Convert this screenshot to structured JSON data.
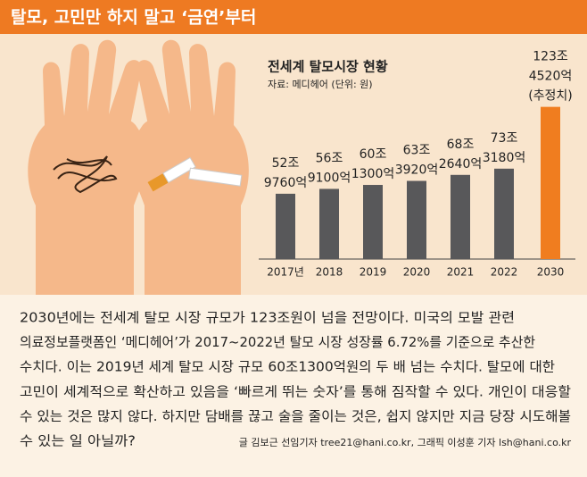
{
  "header": {
    "title": "탈모, 고민만 하지 말고 ‘금연’부터"
  },
  "chart_data": {
    "type": "bar",
    "title": "전세계 탈모시장 현황",
    "subtitle": "자료: 메디헤어 (단위: 원)",
    "categories": [
      "2017년",
      "2018",
      "2019",
      "2020",
      "2021",
      "2022",
      "2030"
    ],
    "values": [
      52.976,
      56.91,
      60.13,
      63.392,
      68.264,
      73.318,
      123.452
    ],
    "value_labels": [
      [
        "52조",
        "9760억"
      ],
      [
        "56조",
        "9100억"
      ],
      [
        "60조",
        "1300억"
      ],
      [
        "63조",
        "3920억"
      ],
      [
        "68조",
        "2640억"
      ],
      [
        "73조",
        "3180억"
      ],
      [
        "123조",
        "4520억"
      ]
    ],
    "annotation": "(추정치)",
    "colors": [
      "#58585a",
      "#58585a",
      "#58585a",
      "#58585a",
      "#58585a",
      "#58585a",
      "#f07d1f"
    ]
  },
  "body": {
    "lines": [
      "2030년에는 전세계 탈모 시장 규모가 123조원이 넘을 전망이다. 미국의 모발 관련",
      "의료정보플랫폼인 ‘메디헤어’가 2017~2022년 탈모 시장 성장률 6.72%를 기준으로 추산한",
      "수치다. 이는 2019년 세계 탈모 시장 규모 60조1300억원의 두 배 넘는 수치다. 탈모에 대한",
      "고민이 세계적으로 확산하고 있음을 ‘빠르게 뛰는 숫자’를 통해 짐작할 수 있다. 개인이 대응할",
      "수 있는 것은 많지 않다. 하지만 담배를 끊고 술을 줄이는 것은, 쉽지 않지만 지금 당장 시도해볼",
      "수 있는 일 아닐까?"
    ],
    "credit": "글 김보근 선임기자 tree21@hani.co.kr, 그래픽 이성훈 기자 lsh@hani.co.kr"
  }
}
